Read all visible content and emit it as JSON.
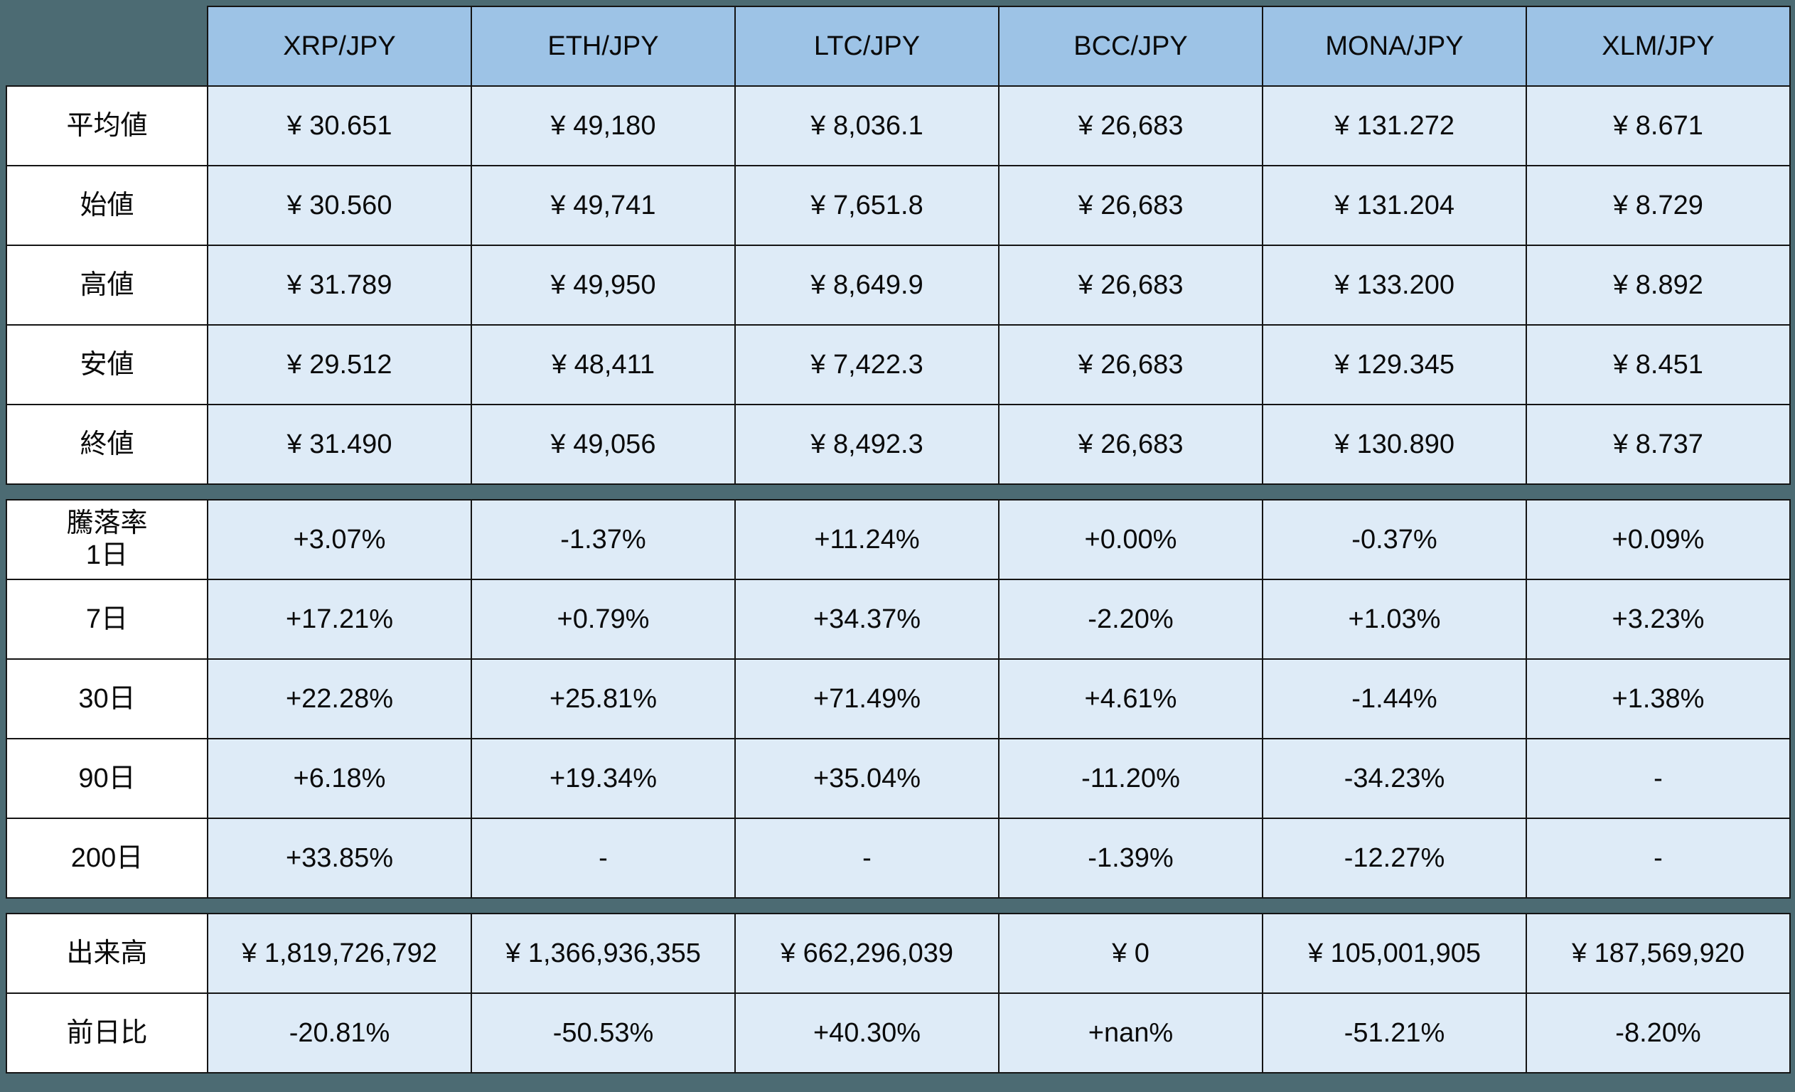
{
  "colors": {
    "background": "#4C6B73",
    "header_bg": "#9DC3E6",
    "cell_bg": "#DEEBF7",
    "label_bg": "#FFFFFF",
    "border": "#141414",
    "text": "#0A0A0A"
  },
  "chart_data": {
    "type": "table",
    "title": "",
    "corner_label": "",
    "columns": [
      "XRP/JPY",
      "ETH/JPY",
      "LTC/JPY",
      "BCC/JPY",
      "MONA/JPY",
      "XLM/JPY"
    ],
    "rows": [
      {
        "label": "平均値",
        "values": [
          "¥ 30.651",
          "¥ 49,180",
          "¥ 8,036.1",
          "¥ 26,683",
          "¥ 131.272",
          "¥ 8.671"
        ]
      },
      {
        "label": "始値",
        "values": [
          "¥ 30.560",
          "¥ 49,741",
          "¥ 7,651.8",
          "¥ 26,683",
          "¥ 131.204",
          "¥ 8.729"
        ]
      },
      {
        "label": "高値",
        "values": [
          "¥ 31.789",
          "¥ 49,950",
          "¥ 8,649.9",
          "¥ 26,683",
          "¥ 133.200",
          "¥ 8.892"
        ]
      },
      {
        "label": "安値",
        "values": [
          "¥ 29.512",
          "¥ 48,411",
          "¥ 7,422.3",
          "¥ 26,683",
          "¥ 129.345",
          "¥ 8.451"
        ]
      },
      {
        "label": "終値",
        "values": [
          "¥ 31.490",
          "¥ 49,056",
          "¥ 8,492.3",
          "¥ 26,683",
          "¥ 130.890",
          "¥ 8.737"
        ]
      },
      {
        "separator": true
      },
      {
        "label": "騰落率\n1日",
        "values": [
          "+3.07%",
          "-1.37%",
          "+11.24%",
          "+0.00%",
          "-0.37%",
          "+0.09%"
        ]
      },
      {
        "label": "7日",
        "values": [
          "+17.21%",
          "+0.79%",
          "+34.37%",
          "-2.20%",
          "+1.03%",
          "+3.23%"
        ]
      },
      {
        "label": "30日",
        "values": [
          "+22.28%",
          "+25.81%",
          "+71.49%",
          "+4.61%",
          "-1.44%",
          "+1.38%"
        ]
      },
      {
        "label": "90日",
        "values": [
          "+6.18%",
          "+19.34%",
          "+35.04%",
          "-11.20%",
          "-34.23%",
          "-"
        ]
      },
      {
        "label": "200日",
        "values": [
          "+33.85%",
          "-",
          "-",
          "-1.39%",
          "-12.27%",
          "-"
        ]
      },
      {
        "separator": true
      },
      {
        "label": "出来高",
        "values": [
          "¥ 1,819,726,792",
          "¥ 1,366,936,355",
          "¥ 662,296,039",
          "¥ 0",
          "¥ 105,001,905",
          "¥ 187,569,920"
        ]
      },
      {
        "label": "前日比",
        "values": [
          "-20.81%",
          "-50.53%",
          "+40.30%",
          "+nan%",
          "-51.21%",
          "-8.20%"
        ]
      }
    ]
  }
}
